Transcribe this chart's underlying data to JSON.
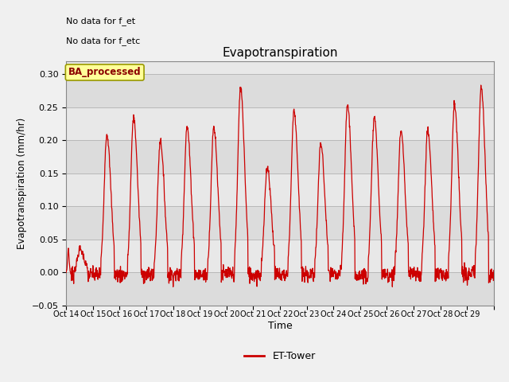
{
  "title": "Evapotranspiration",
  "ylabel": "Evapotranspiration (mm/hr)",
  "xlabel": "Time",
  "top_left_text1": "No data for f_et",
  "top_left_text2": "No data for f_etc",
  "box_label": "BA_processed",
  "legend_label": "ET-Tower",
  "legend_color": "#cc0000",
  "line_color": "#cc0000",
  "ylim": [
    -0.05,
    0.32
  ],
  "yticks": [
    -0.05,
    0.0,
    0.05,
    0.1,
    0.15,
    0.2,
    0.25,
    0.3
  ],
  "band_colors": [
    "#dcdcdc",
    "#e8e8e8"
  ],
  "band_edges": [
    -0.05,
    0.0,
    0.05,
    0.1,
    0.15,
    0.2,
    0.25,
    0.3,
    0.32
  ],
  "fig_bg_color": "#f0f0f0",
  "plot_bg_color": "#dcdcdc",
  "grid_color": "#c8c8c8",
  "x_tick_labels": [
    "Oct 14",
    "Oct 15",
    "Oct 16",
    "Oct 17",
    "Oct 18",
    "Oct 19",
    "Oct 20",
    "Oct 21",
    "Oct 22",
    "Oct 23",
    "Oct 24",
    "Oct 25",
    "Oct 26",
    "Oct 27",
    "Oct 28",
    "Oct 29"
  ],
  "n_days": 16,
  "points_per_day": 96
}
